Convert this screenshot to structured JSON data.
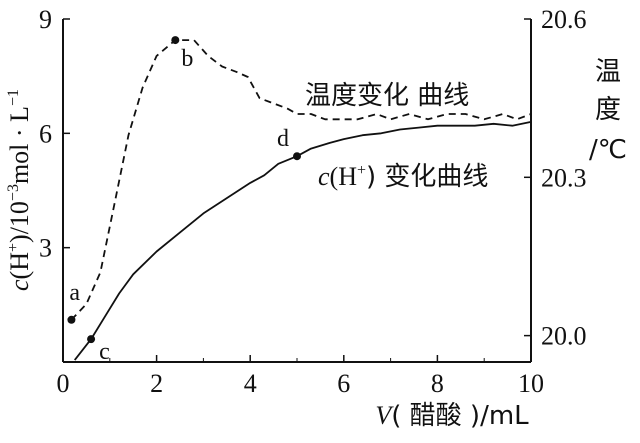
{
  "chart_data": {
    "type": "line",
    "x_axis": {
      "label_italic": "V",
      "label_rest": "( 醋酸 )/mL",
      "ticks": [
        0,
        2,
        4,
        6,
        8,
        10
      ],
      "range": [
        0,
        10
      ]
    },
    "y_left": {
      "label_italic": "c",
      "label_rest": "(H",
      "label_sup": "+",
      "label_rest2": ")/10",
      "label_sup2": "−3",
      "label_rest3": "mol · L",
      "label_sup3": "−1",
      "ticks": [
        3,
        6,
        9
      ],
      "range": [
        0,
        9
      ]
    },
    "y_right": {
      "label_lines": [
        "温",
        "度",
        "/℃"
      ],
      "ticks": [
        "20.0",
        "20.3",
        "20.6"
      ],
      "tick_values": [
        20.0,
        20.3,
        20.6
      ],
      "range": [
        19.95,
        20.6
      ]
    },
    "series": [
      {
        "name": "温度变化 曲线",
        "axis": "right",
        "style": "dashed",
        "points": [
          [
            0.18,
            20.03
          ],
          [
            0.5,
            20.06
          ],
          [
            0.8,
            20.12
          ],
          [
            1.1,
            20.25
          ],
          [
            1.4,
            20.38
          ],
          [
            1.7,
            20.47
          ],
          [
            2.0,
            20.53
          ],
          [
            2.4,
            20.56
          ],
          [
            2.8,
            20.56
          ],
          [
            3.1,
            20.53
          ],
          [
            3.4,
            20.51
          ],
          [
            3.7,
            20.5
          ],
          [
            3.95,
            20.49
          ],
          [
            4.2,
            20.45
          ],
          [
            4.5,
            20.44
          ],
          [
            4.8,
            20.43
          ],
          [
            5.0,
            20.42
          ],
          [
            5.3,
            20.42
          ],
          [
            5.6,
            20.41
          ],
          [
            6.0,
            20.41
          ],
          [
            6.3,
            20.41
          ],
          [
            6.7,
            20.42
          ],
          [
            7.0,
            20.41
          ],
          [
            7.4,
            20.42
          ],
          [
            7.8,
            20.41
          ],
          [
            8.2,
            20.42
          ],
          [
            8.6,
            20.42
          ],
          [
            9.0,
            20.41
          ],
          [
            9.4,
            20.42
          ],
          [
            9.7,
            20.41
          ],
          [
            10.0,
            20.42
          ]
        ]
      },
      {
        "name": "c(H⁺) 变化曲线",
        "axis": "left",
        "style": "solid",
        "points": [
          [
            0.25,
            0.05
          ],
          [
            0.6,
            0.6
          ],
          [
            0.9,
            1.2
          ],
          [
            1.2,
            1.8
          ],
          [
            1.5,
            2.3
          ],
          [
            2.0,
            2.9
          ],
          [
            2.5,
            3.4
          ],
          [
            3.0,
            3.9
          ],
          [
            3.5,
            4.3
          ],
          [
            4.0,
            4.7
          ],
          [
            4.3,
            4.9
          ],
          [
            4.6,
            5.2
          ],
          [
            5.0,
            5.4
          ],
          [
            5.3,
            5.6
          ],
          [
            5.7,
            5.75
          ],
          [
            6.0,
            5.85
          ],
          [
            6.4,
            5.95
          ],
          [
            6.8,
            6.0
          ],
          [
            7.2,
            6.1
          ],
          [
            7.6,
            6.15
          ],
          [
            8.0,
            6.2
          ],
          [
            8.4,
            6.2
          ],
          [
            8.8,
            6.2
          ],
          [
            9.2,
            6.25
          ],
          [
            9.6,
            6.2
          ],
          [
            10.0,
            6.3
          ]
        ]
      }
    ],
    "points": [
      {
        "label": "a",
        "x": 0.18,
        "y": 20.03,
        "axis": "right"
      },
      {
        "label": "b",
        "x": 2.4,
        "y": 20.56,
        "axis": "right"
      },
      {
        "label": "c",
        "x": 0.6,
        "y": 0.6,
        "axis": "left"
      },
      {
        "label": "d",
        "x": 5.0,
        "y": 5.4,
        "axis": "left"
      }
    ],
    "annotations": {
      "temp_curve": "温度变化 曲线",
      "ch_curve_prefix": "c",
      "ch_curve_mid": "(H",
      "ch_curve_sup": "+",
      "ch_curve_suffix": ") 变化曲线"
    }
  }
}
